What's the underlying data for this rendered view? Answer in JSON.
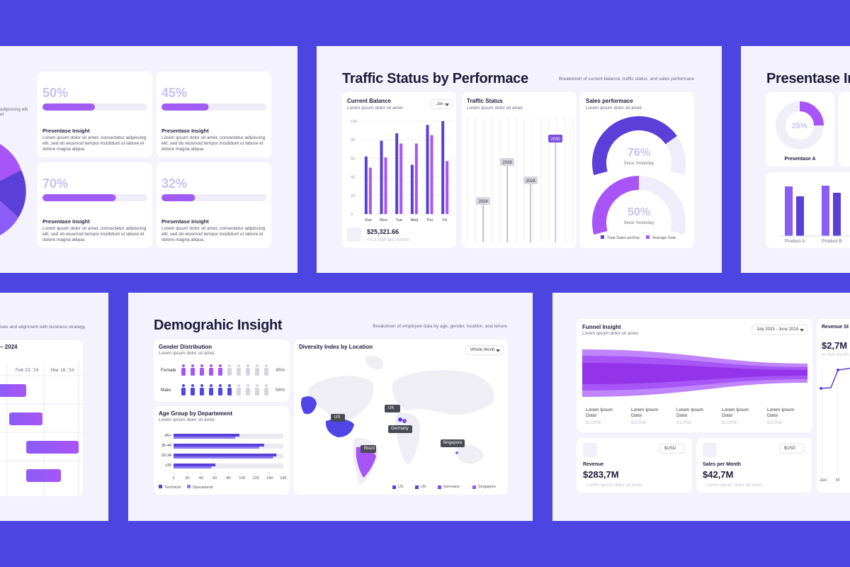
{
  "left_slide": {
    "fragment": "adipiscing elit et",
    "cards": [
      {
        "value": 50,
        "value_label": "50%",
        "title": "Presentase Insight",
        "text": "Lorem ipsum dolor sit amet, consectetur adipiscing elit, sed do eiusmod tempor incididunt ut labore et dolore magna aliqua."
      },
      {
        "value": 45,
        "value_label": "45%",
        "title": "Presentase Insight",
        "text": "Lorem ipsum dolor sit amet, consectetur adipiscing elit, sed do eiusmod tempor incididunt ut labore et dolore magna aliqua."
      },
      {
        "value": 70,
        "value_label": "70%",
        "title": "Presentase Insight",
        "text": "Lorem ipsum dolor sit amet, consectetur adipiscing elit, sed do eiusmod tempor incididunt ut labore et dolore magna aliqua."
      },
      {
        "value": 32,
        "value_label": "32%",
        "title": "Presentase Insight",
        "text": "Lorem ipsum dolor sit amet, consectetur adipiscing elit, sed do eiusmod tempor incididunt ut labore et dolore magna aliqua."
      }
    ]
  },
  "traffic": {
    "title": "Traffic Status by Performace",
    "subtitle": "Breakdown of current balance, traffic status, and sales performace",
    "balance": {
      "title": "Current Balance",
      "subtitle": "Lorem ipsum dolor sit amet.",
      "dropdown": "Jan",
      "type": "bar",
      "categories": [
        "Sun",
        "Mon",
        "Tue",
        "Wed",
        "Thu",
        "Fri"
      ],
      "series": [
        {
          "color": "#5b3fd9",
          "values": [
            62,
            79,
            87,
            53,
            96,
            100
          ]
        },
        {
          "color": "#a855f7",
          "values": [
            50,
            61,
            76,
            76,
            85,
            57
          ]
        }
      ],
      "ylim": [
        0,
        100
      ],
      "yticks": [
        0,
        20,
        40,
        60,
        80,
        100
      ],
      "grid": true,
      "amount": "$25,321.66",
      "change": "+3.2 than last month"
    },
    "traffic_status": {
      "title": "Traffic Status",
      "subtitle": "Lorem ipsum dolor sit amet.",
      "labels": [
        "2024",
        "2026",
        "2028",
        "2030"
      ]
    },
    "sales": {
      "title": "Sales performace",
      "subtitle": "Lorem ipsum dolor sit amet.",
      "gauges": [
        {
          "value": 76,
          "value_label": "76%",
          "caption": "Since Yesterday",
          "color": "#5b3fd9"
        },
        {
          "value": 50,
          "value_label": "50%",
          "caption": "Since Yesterday",
          "color": "#a855f7"
        }
      ],
      "legend": [
        "Total Sales perDay",
        "Average Sale"
      ]
    }
  },
  "right_slide": {
    "title": "Presentase In",
    "donut": {
      "value": 25,
      "value_label": "25%",
      "caption": "Presentase A"
    },
    "products": [
      "Product A",
      "Product B"
    ]
  },
  "gantt": {
    "fragment": "ives and alignment with business strategy.",
    "range": "– 2024",
    "dates": [
      "Feb 23, '24",
      "Mar 18, '24"
    ]
  },
  "demographic": {
    "title": "Demograhic Insight",
    "subtitle": "Breakdown of employee data by age, gender, location, and tenure",
    "gender": {
      "title": "Gender Distribution",
      "subtitle": "Lorem ipsum dolor sit amet.",
      "rows": [
        {
          "label": "Female",
          "value": 45,
          "value_label": "45%",
          "color": "#a855f7"
        },
        {
          "label": "Male",
          "value": 56,
          "value_label": "56%",
          "color": "#4f46e5"
        }
      ]
    },
    "age": {
      "title": "Age Group by Departement",
      "subtitle": "Lorem ipsum dolor sit amet.",
      "type": "hbar",
      "categories": [
        "45+",
        "35-44",
        "25-34",
        "<25"
      ],
      "series": [
        {
          "name": "Technical",
          "color": "#5b3fd9",
          "values": [
            96,
            132,
            150,
            61
          ]
        },
        {
          "name": "Operational",
          "color": "#8b7cf6",
          "values": [
            90,
            125,
            145,
            55
          ]
        }
      ],
      "xlim": [
        0,
        160
      ],
      "xticks": [
        0,
        20,
        40,
        60,
        80,
        100,
        120,
        140,
        160
      ]
    },
    "map": {
      "title": "Diversity Index by Location",
      "dropdown": "Whole World",
      "locations": [
        {
          "name": "US",
          "color": "#4f46e5"
        },
        {
          "name": "UK",
          "color": "#5b3fd9"
        },
        {
          "name": "Germany",
          "color": "#7c4ddf"
        },
        {
          "name": "Singapore",
          "color": "#9b5cf0"
        },
        {
          "name": "Brazil",
          "color": "#a855f7"
        }
      ]
    }
  },
  "funnel": {
    "title": "Funnel Insight",
    "subtitle": "Lorem ipsum dolor sit amet.",
    "dropdown": "July 2023 - June 2024",
    "stages": [
      {
        "label": "Lorem Ipsum Dolor",
        "amount": "$1000k"
      },
      {
        "label": "Lorem Ipsum Dolor",
        "amount": "$1000k"
      },
      {
        "label": "Lorem Ipsum Dolor",
        "amount": "$1000k"
      },
      {
        "label": "Lorem Ipsum Dolor",
        "amount": "$1000k"
      },
      {
        "label": "Lorem Ipsum Dolor",
        "amount": "$1000k"
      }
    ],
    "kpis": [
      {
        "currency": "$USD",
        "title": "Revenue",
        "amount": "$283,7M",
        "note": "Lorem ipsum dolor sit amet"
      },
      {
        "currency": "$USD",
        "title": "Sales per Month",
        "amount": "$42,7M",
        "note": "Lorem ipsum dolor sit amet"
      }
    ],
    "revenue_stream": {
      "title": "Revenue St",
      "amount": "$2,7M",
      "note": "vs last month",
      "months": [
        "Jan",
        "M"
      ]
    }
  }
}
